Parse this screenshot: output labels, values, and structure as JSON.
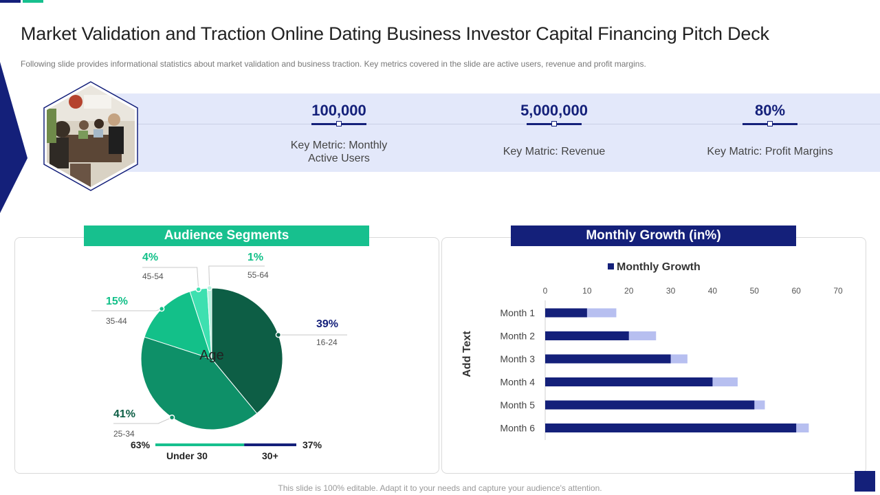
{
  "header": {
    "title": "Market Validation and Traction Online Dating Business Investor Capital Financing Pitch Deck",
    "subtitle": "Following slide provides informational statistics about market validation and business traction. Key metrics covered in the slide are active users, revenue and profit margins."
  },
  "metrics": [
    {
      "value": "100,000",
      "label_lines": [
        "Key Metric: Monthly",
        "Active Users"
      ]
    },
    {
      "value": "5,000,000",
      "label_lines": [
        "Key Matric: Revenue"
      ]
    },
    {
      "value": "80%",
      "label_lines": [
        "Key Matric: Profit Margins"
      ]
    }
  ],
  "photo": {
    "icon": "team-meeting-photo"
  },
  "left_panel": {
    "banner": "Audience Segments"
  },
  "right_panel": {
    "banner": "Monthly Growth (in%)"
  },
  "footer": {
    "note": "This slide is 100% editable. Adapt it to your needs and capture your audience's attention."
  },
  "colors": {
    "navy": "#14207a",
    "green": "#17c08e",
    "light_band": "#e3e8fa",
    "pie": [
      "#0d5e45",
      "#0e9068",
      "#13c089",
      "#3ee0b0",
      "#b8f2df"
    ],
    "bar_light": "#b7bff0"
  },
  "chart_data": [
    {
      "type": "pie",
      "title": "Audience Segments",
      "center_label": "Age",
      "slices": [
        {
          "label": "16-24",
          "value": 39,
          "pct_label": "39%"
        },
        {
          "label": "25-34",
          "value": 41,
          "pct_label": "41%"
        },
        {
          "label": "35-44",
          "value": 15,
          "pct_label": "15%"
        },
        {
          "label": "45-54",
          "value": 4,
          "pct_label": "4%"
        },
        {
          "label": "55-64",
          "value": 1,
          "pct_label": "1%"
        }
      ],
      "split": {
        "left_pct": 63,
        "left_pct_label": "63%",
        "left_label": "Under 30",
        "right_pct": 37,
        "right_pct_label": "37%",
        "right_label": "30+"
      }
    },
    {
      "type": "bar",
      "orientation": "horizontal",
      "title": "Monthly Growth (in%)",
      "legend": "Monthly Growth",
      "legend_position": "top",
      "ylabel": "Add Text",
      "categories": [
        "Month 1",
        "Month 2",
        "Month 3",
        "Month 4",
        "Month 5",
        "Month 6"
      ],
      "series": [
        {
          "name": "Monthly Growth",
          "values": [
            10,
            20,
            30,
            40,
            50,
            60
          ]
        }
      ],
      "overlay_extent": [
        17,
        26.5,
        34,
        46,
        52.5,
        63
      ],
      "xlim": [
        0,
        70
      ],
      "xticks": [
        0,
        10,
        20,
        30,
        40,
        50,
        60,
        70
      ]
    }
  ]
}
